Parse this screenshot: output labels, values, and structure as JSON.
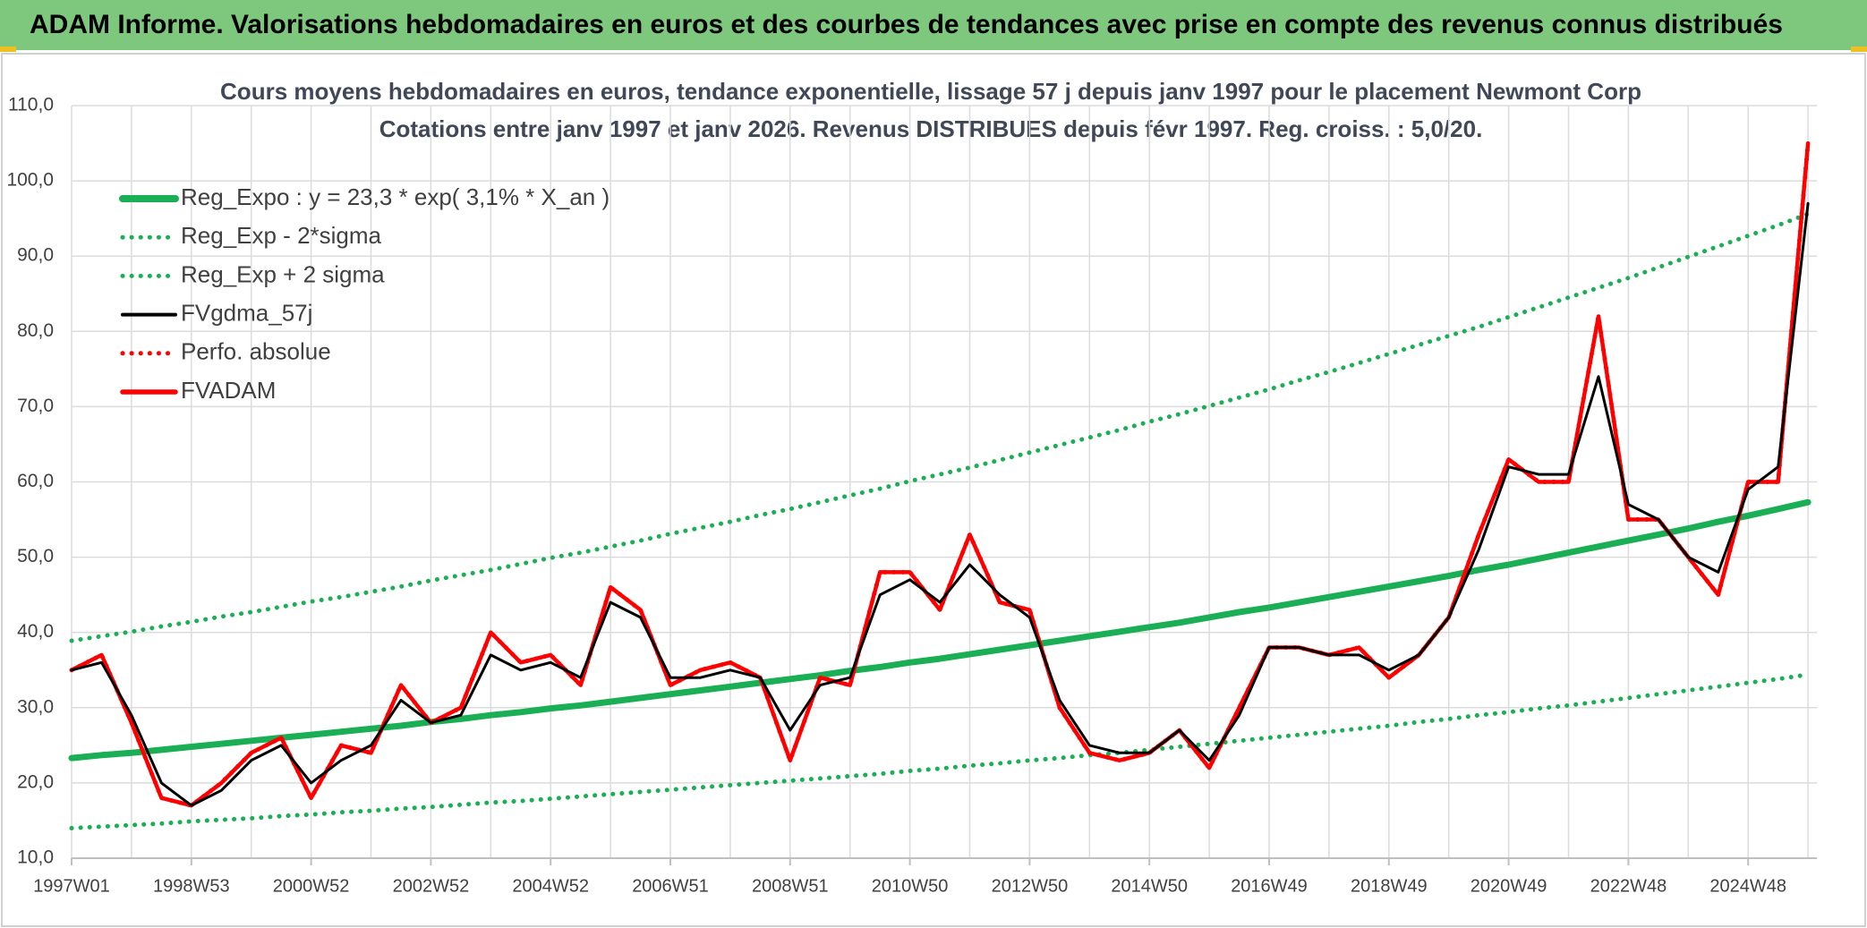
{
  "header": {
    "title": "ADAM Informe. Valorisations hebdomadaires en euros et des courbes de tendances avec prise en compte des revenus connus distribués"
  },
  "chart_data": {
    "type": "line",
    "title": "Cours moyens hebdomadaires en euros, tendance exponentielle, lissage 57 j depuis janv 1997 pour le placement Newmont Corp",
    "subtitle": "Cotations entre janv 1997 et janv 2026. Revenus DISTRIBUES depuis févr 1997. Reg. croiss. : 5,0/20.",
    "categories": [
      "1997W01",
      null,
      null,
      null,
      "1998W53",
      null,
      null,
      null,
      "2000W52",
      null,
      null,
      null,
      "2002W52",
      null,
      null,
      null,
      "2004W52",
      null,
      null,
      null,
      "2006W51",
      null,
      null,
      null,
      "2008W51",
      null,
      null,
      null,
      "2010W50",
      null,
      null,
      null,
      "2012W50",
      null,
      null,
      null,
      "2014W50",
      null,
      null,
      null,
      "2016W49",
      null,
      null,
      null,
      "2018W49",
      null,
      null,
      null,
      "2020W49",
      null,
      null,
      null,
      "2022W48",
      null,
      null,
      null,
      "2024W48",
      null,
      null
    ],
    "series": [
      {
        "name": "Reg_Expo : y = 23,3 * exp( 3,1% *  X_an )",
        "color": "#1aaf54",
        "style": "solid",
        "values": [
          23.3,
          23.7,
          24.0,
          24.4,
          24.8,
          25.2,
          25.6,
          26.0,
          26.4,
          26.8,
          27.2,
          27.6,
          28.1,
          28.5,
          29.0,
          29.4,
          29.9,
          30.3,
          30.8,
          31.3,
          31.8,
          32.3,
          32.8,
          33.3,
          33.8,
          34.3,
          34.9,
          35.4,
          36.0,
          36.5,
          37.1,
          37.7,
          38.3,
          38.9,
          39.5,
          40.1,
          40.7,
          41.3,
          42.0,
          42.7,
          43.3,
          44.0,
          44.7,
          45.4,
          46.1,
          46.8,
          47.5,
          48.3,
          49.0,
          49.8,
          50.6,
          51.4,
          52.2,
          53.0,
          53.8,
          54.7,
          55.5,
          56.4,
          57.3
        ]
      },
      {
        "name": "Reg_Exp - 2*sigma",
        "color": "#1aaf54",
        "style": "dotted",
        "values": [
          14.0,
          14.2,
          14.4,
          14.6,
          14.9,
          15.1,
          15.3,
          15.6,
          15.8,
          16.1,
          16.3,
          16.6,
          16.8,
          17.1,
          17.4,
          17.6,
          17.9,
          18.2,
          18.5,
          18.8,
          19.1,
          19.4,
          19.7,
          20.0,
          20.3,
          20.6,
          20.9,
          21.2,
          21.6,
          21.9,
          22.3,
          22.6,
          23.0,
          23.3,
          23.7,
          24.0,
          24.4,
          24.8,
          25.2,
          25.6,
          26.0,
          26.4,
          26.8,
          27.2,
          27.6,
          28.1,
          28.5,
          29.0,
          29.4,
          29.9,
          30.3,
          30.8,
          31.3,
          31.8,
          32.3,
          32.8,
          33.3,
          33.8,
          34.4
        ]
      },
      {
        "name": "Reg_Exp + 2 sigma",
        "color": "#1aaf54",
        "style": "dotted",
        "values": [
          38.9,
          39.5,
          40.1,
          40.8,
          41.4,
          42.1,
          42.7,
          43.4,
          44.1,
          44.7,
          45.4,
          46.1,
          46.9,
          47.6,
          48.3,
          49.1,
          49.9,
          50.6,
          51.4,
          52.2,
          53.1,
          53.9,
          54.7,
          55.6,
          56.4,
          57.3,
          58.2,
          59.1,
          60.1,
          61.0,
          61.9,
          62.9,
          63.9,
          64.9,
          65.9,
          66.9,
          68.0,
          69.0,
          70.1,
          71.2,
          72.3,
          73.5,
          74.6,
          75.8,
          77.0,
          78.2,
          79.4,
          80.6,
          81.9,
          83.2,
          84.5,
          85.8,
          87.1,
          88.5,
          89.9,
          91.3,
          92.7,
          94.1,
          95.6
        ]
      },
      {
        "name": "FVgdma_57j",
        "color": "#000000",
        "style": "solid",
        "values": [
          35,
          36,
          29,
          20,
          17,
          19,
          23,
          25,
          20,
          23,
          25,
          31,
          28,
          29,
          37,
          35,
          36,
          34,
          44,
          42,
          34,
          34,
          35,
          34,
          27,
          33,
          34,
          45,
          47,
          44,
          49,
          45,
          42,
          31,
          25,
          24,
          24,
          27,
          23,
          29,
          38,
          38,
          37,
          37,
          35,
          37,
          42,
          51,
          62,
          61,
          61,
          74,
          57,
          55,
          50,
          48,
          59,
          62,
          97
        ]
      },
      {
        "name": "Perfo. absolue",
        "color": "#ff0000",
        "style": "dotted",
        "values": [
          35,
          37,
          28,
          18,
          17,
          20,
          24,
          26,
          18,
          25,
          24,
          33,
          28,
          30,
          40,
          36,
          37,
          33,
          46,
          43,
          33,
          35,
          36,
          34,
          23,
          34,
          33,
          48,
          48,
          43,
          53,
          44,
          43,
          30,
          24,
          23,
          24,
          27,
          22,
          30,
          38,
          38,
          37,
          38,
          34,
          37,
          42,
          53,
          63,
          60,
          60,
          82,
          55,
          55,
          50,
          45,
          60,
          60,
          105
        ]
      },
      {
        "name": "FVADAM",
        "color": "#ff0000",
        "style": "solid",
        "values": [
          35,
          37,
          28,
          18,
          17,
          20,
          24,
          26,
          18,
          25,
          24,
          33,
          28,
          30,
          40,
          36,
          37,
          33,
          46,
          43,
          33,
          35,
          36,
          34,
          23,
          34,
          33,
          48,
          48,
          43,
          53,
          44,
          43,
          30,
          24,
          23,
          24,
          27,
          22,
          30,
          38,
          38,
          37,
          38,
          34,
          37,
          42,
          53,
          63,
          60,
          60,
          82,
          55,
          55,
          50,
          45,
          60,
          60,
          105
        ]
      }
    ],
    "ylim": [
      10,
      110
    ],
    "yticks": [
      {
        "value": 10,
        "label": "10,0"
      },
      {
        "value": 20,
        "label": "20,0"
      },
      {
        "value": 30,
        "label": "30,0"
      },
      {
        "value": 40,
        "label": "40,0"
      },
      {
        "value": 50,
        "label": "50,0"
      },
      {
        "value": 60,
        "label": "60,0"
      },
      {
        "value": 70,
        "label": "70,0"
      },
      {
        "value": 80,
        "label": "80,0"
      },
      {
        "value": 90,
        "label": "90,0"
      },
      {
        "value": 100,
        "label": "100,0"
      },
      {
        "value": 110,
        "label": "110,0"
      }
    ],
    "grid": true,
    "legend": "upper left"
  }
}
